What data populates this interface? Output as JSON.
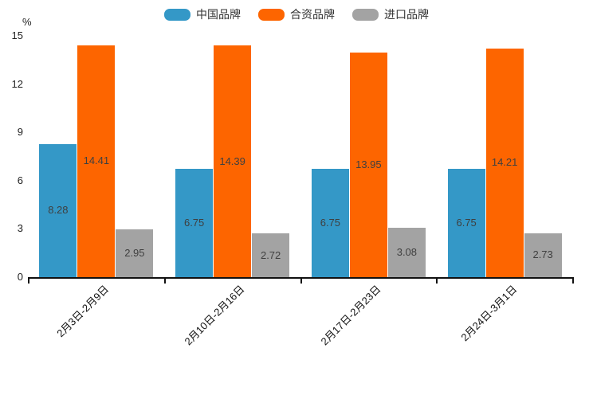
{
  "chart_data": {
    "type": "bar",
    "title": "",
    "xlabel": "",
    "ylabel": "%",
    "ylim": [
      0,
      15
    ],
    "yticks": [
      0,
      3,
      6,
      9,
      12,
      15
    ],
    "grid": false,
    "legend_position": "top",
    "value_labels": "inside-center",
    "categories": [
      "2月3日-2月9日",
      "2月10日-2月16日",
      "2月17日-2月23日",
      "2月24日-3月1日"
    ],
    "series": [
      {
        "id": "china-brand",
        "name": "中国品牌",
        "color": "#3498c7",
        "values": [
          8.28,
          6.75,
          6.75,
          6.75
        ]
      },
      {
        "id": "joint-venture-brand",
        "name": "合资品牌",
        "color": "#fd6500",
        "values": [
          14.41,
          14.39,
          13.95,
          14.21
        ]
      },
      {
        "id": "import-brand",
        "name": "进口品牌",
        "color": "#a3a3a3",
        "values": [
          2.95,
          2.72,
          3.08,
          2.73
        ]
      }
    ]
  },
  "colors": {
    "background": "#ffffff",
    "axis": "#111111",
    "tick_label": "#222222",
    "value_label": "#3f3f3f"
  }
}
